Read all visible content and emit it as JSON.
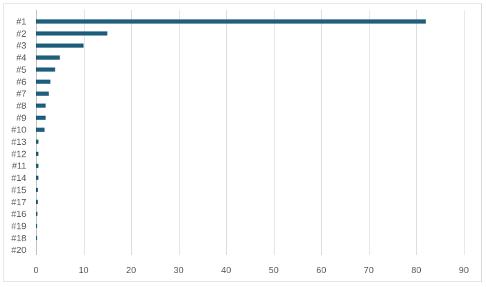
{
  "chart_data": {
    "type": "bar",
    "orientation": "horizontal",
    "categories": [
      "#1",
      "#2",
      "#3",
      "#4",
      "#5",
      "#6",
      "#7",
      "#8",
      "#9",
      "#10",
      "#13",
      "#12",
      "#11",
      "#14",
      "#15",
      "#17",
      "#16",
      "#19",
      "#18",
      "#20"
    ],
    "values": [
      82,
      15,
      10,
      5,
      4,
      3,
      2.7,
      2,
      2,
      1.8,
      0.5,
      0.5,
      0.5,
      0.5,
      0.4,
      0.4,
      0.3,
      0.2,
      0.2,
      0
    ],
    "xlim": [
      0,
      90
    ],
    "x_ticks": [
      0,
      10,
      20,
      30,
      40,
      50,
      60,
      70,
      80,
      90
    ],
    "title": "",
    "xlabel": "",
    "ylabel": "",
    "grid": "vertical",
    "legend": "none",
    "bar_color": "#1f5e7c"
  }
}
